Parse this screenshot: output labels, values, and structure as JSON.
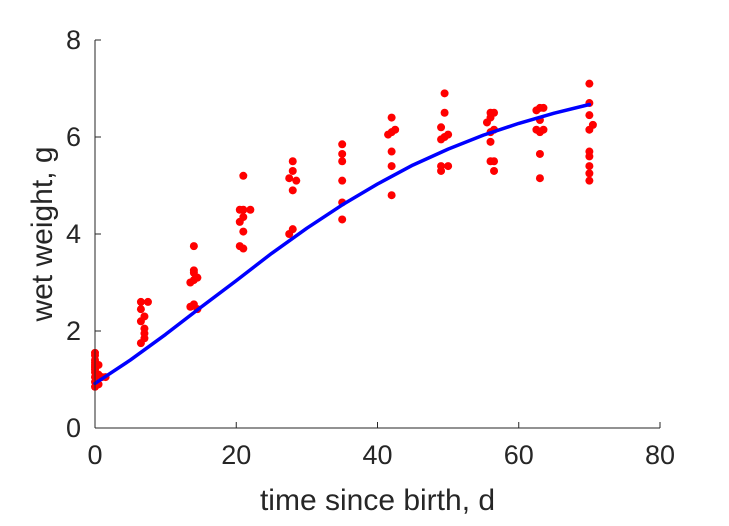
{
  "chart_data": {
    "type": "scatter",
    "title": "",
    "xlabel": "time since birth, d",
    "ylabel": "wet weight, g",
    "xlim": [
      0,
      80
    ],
    "ylim": [
      0,
      8
    ],
    "x_ticks": [
      "0",
      "20",
      "40",
      "60",
      "80"
    ],
    "y_ticks": [
      "0",
      "2",
      "4",
      "6",
      "8"
    ],
    "grid": false,
    "legend": "none",
    "series": [
      {
        "kind": "scatter",
        "color": "#ff0000",
        "marker": "filled-circle",
        "points": [
          [
            0,
            0.85
          ],
          [
            0,
            0.95
          ],
          [
            0,
            1.05
          ],
          [
            0,
            1.15
          ],
          [
            0,
            1.2
          ],
          [
            0,
            1.25
          ],
          [
            0,
            1.3
          ],
          [
            0,
            1.35
          ],
          [
            0,
            1.4
          ],
          [
            0,
            1.5
          ],
          [
            0,
            1.55
          ],
          [
            0.5,
            0.9
          ],
          [
            0.5,
            1.1
          ],
          [
            0.5,
            1.3
          ],
          [
            1,
            1.05
          ],
          [
            1.5,
            1.05
          ],
          [
            6.5,
            1.75
          ],
          [
            7,
            1.85
          ],
          [
            7,
            1.95
          ],
          [
            6.5,
            2.2
          ],
          [
            7,
            2.3
          ],
          [
            6.5,
            2.45
          ],
          [
            6.5,
            2.6
          ],
          [
            7.5,
            2.6
          ],
          [
            7,
            2.05
          ],
          [
            13.5,
            2.5
          ],
          [
            14,
            2.55
          ],
          [
            14.5,
            2.45
          ],
          [
            13.5,
            3.0
          ],
          [
            14,
            3.05
          ],
          [
            14.5,
            3.1
          ],
          [
            14,
            3.2
          ],
          [
            14,
            3.25
          ],
          [
            14,
            3.75
          ],
          [
            20.5,
            3.75
          ],
          [
            21,
            3.7
          ],
          [
            21,
            4.05
          ],
          [
            20.5,
            4.25
          ],
          [
            21,
            4.35
          ],
          [
            21,
            4.5
          ],
          [
            20.5,
            4.5
          ],
          [
            22,
            4.5
          ],
          [
            21,
            5.2
          ],
          [
            27.5,
            4.0
          ],
          [
            28,
            4.1
          ],
          [
            28,
            4.9
          ],
          [
            27.5,
            5.15
          ],
          [
            28.5,
            5.1
          ],
          [
            28,
            5.3
          ],
          [
            28,
            5.5
          ],
          [
            35,
            4.3
          ],
          [
            35,
            4.65
          ],
          [
            35,
            5.1
          ],
          [
            35,
            5.5
          ],
          [
            35,
            5.65
          ],
          [
            35,
            5.85
          ],
          [
            42,
            4.8
          ],
          [
            42,
            5.4
          ],
          [
            42,
            5.7
          ],
          [
            41.5,
            6.05
          ],
          [
            42,
            6.1
          ],
          [
            42.5,
            6.15
          ],
          [
            42,
            6.4
          ],
          [
            49,
            5.3
          ],
          [
            49,
            5.4
          ],
          [
            50,
            5.4
          ],
          [
            49,
            5.95
          ],
          [
            49.5,
            6.0
          ],
          [
            50,
            6.05
          ],
          [
            49,
            6.2
          ],
          [
            49.5,
            6.5
          ],
          [
            49.5,
            6.9
          ],
          [
            56.5,
            5.3
          ],
          [
            56,
            5.5
          ],
          [
            56.5,
            5.5
          ],
          [
            56,
            5.9
          ],
          [
            56,
            6.1
          ],
          [
            56.5,
            6.15
          ],
          [
            55.5,
            6.3
          ],
          [
            56,
            6.4
          ],
          [
            56.5,
            6.5
          ],
          [
            56,
            6.5
          ],
          [
            63,
            5.15
          ],
          [
            63,
            5.65
          ],
          [
            63,
            6.1
          ],
          [
            62.5,
            6.15
          ],
          [
            63.5,
            6.15
          ],
          [
            63,
            6.35
          ],
          [
            62.5,
            6.55
          ],
          [
            63.5,
            6.6
          ],
          [
            63,
            6.6
          ],
          [
            70,
            5.1
          ],
          [
            70,
            5.25
          ],
          [
            70,
            5.4
          ],
          [
            70,
            5.6
          ],
          [
            70,
            5.7
          ],
          [
            70,
            6.15
          ],
          [
            70.5,
            6.25
          ],
          [
            70,
            6.45
          ],
          [
            70,
            6.7
          ],
          [
            70,
            7.1
          ]
        ]
      },
      {
        "kind": "line",
        "color": "#0000ff",
        "points": [
          [
            0,
            0.92
          ],
          [
            5,
            1.4
          ],
          [
            10,
            1.93
          ],
          [
            15,
            2.49
          ],
          [
            20,
            3.04
          ],
          [
            25,
            3.6
          ],
          [
            30,
            4.12
          ],
          [
            35,
            4.6
          ],
          [
            40,
            5.03
          ],
          [
            45,
            5.42
          ],
          [
            50,
            5.75
          ],
          [
            55,
            6.04
          ],
          [
            60,
            6.28
          ],
          [
            65,
            6.49
          ],
          [
            70,
            6.67
          ]
        ]
      }
    ]
  }
}
